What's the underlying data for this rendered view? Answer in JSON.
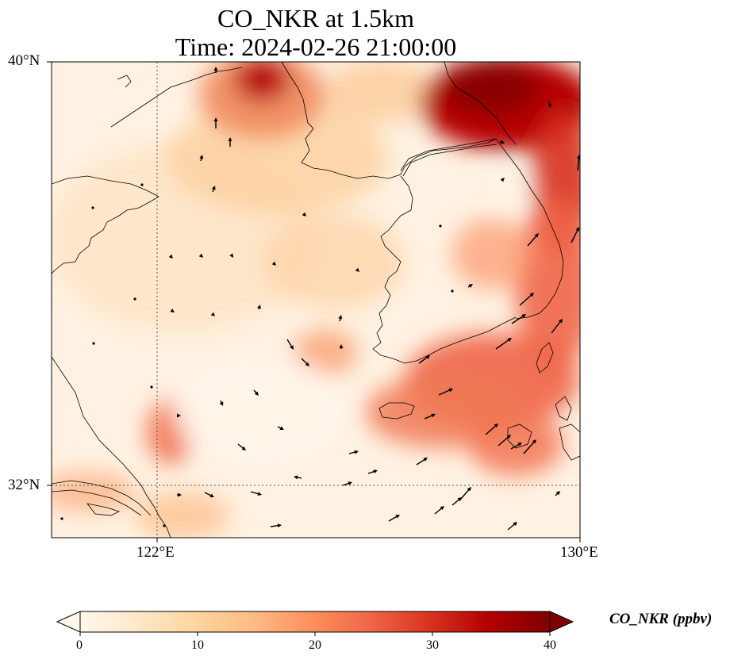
{
  "title": {
    "line1": "CO_NKR at 1.5km",
    "line2": "Time: 2024-02-26 21:00:00"
  },
  "map": {
    "lon_range": [
      120,
      130
    ],
    "lat_range": [
      31,
      40
    ],
    "lat_ticks": [
      {
        "label": "40°N",
        "value": 40
      },
      {
        "label": "32°N",
        "value": 32
      }
    ],
    "lon_ticks": [
      {
        "label": "122°E",
        "value": 122
      },
      {
        "label": "130°E",
        "value": 130
      }
    ],
    "gridlines": {
      "lon": 122,
      "lat": 32,
      "style": "dotted"
    },
    "field_variable": "CO_NKR",
    "level": "1.5km",
    "overlays": [
      "coastlines",
      "wind-vectors"
    ],
    "colormap": "OrRd"
  },
  "colorbar": {
    "label": "CO_NKR (ppbv)",
    "min": 0,
    "max": 40,
    "extend": "both",
    "ticks": [
      "0",
      "10",
      "20",
      "30",
      "40"
    ],
    "colors": [
      "#fff7ec",
      "#fee8c8",
      "#fdd49e",
      "#fdbb84",
      "#fc8d59",
      "#ef6548",
      "#d7301f",
      "#b30000",
      "#7f0000"
    ]
  }
}
